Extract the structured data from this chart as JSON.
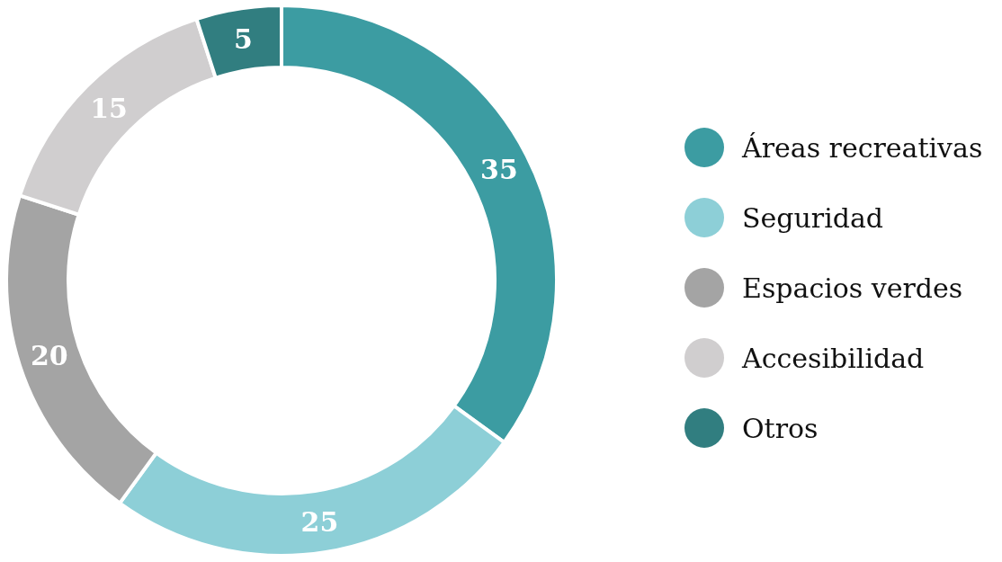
{
  "chart_data": {
    "type": "donut",
    "categories": [
      "Áreas recreativas",
      "Seguridad",
      "Espacios verdes",
      "Accesibilidad",
      "Otros"
    ],
    "values": [
      35,
      25,
      20,
      15,
      5
    ],
    "colors": [
      "#3c9ca2",
      "#8dcfd7",
      "#a4a4a4",
      "#d0cecf",
      "#317e80"
    ],
    "data_labels": true,
    "legend": "right"
  }
}
